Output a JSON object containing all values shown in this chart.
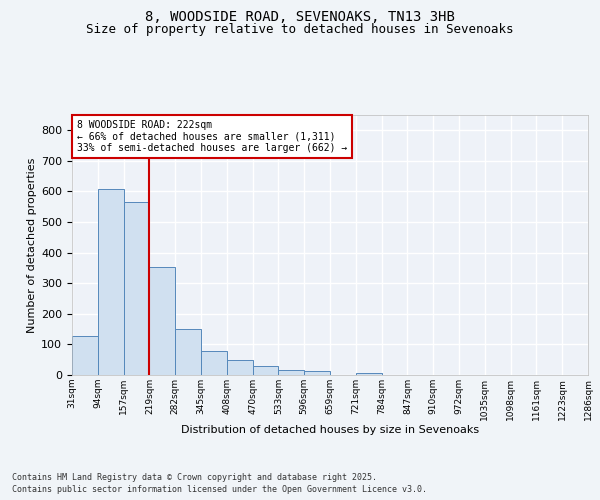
{
  "title_line1": "8, WOODSIDE ROAD, SEVENOAKS, TN13 3HB",
  "title_line2": "Size of property relative to detached houses in Sevenoaks",
  "bar_values": [
    128,
    607,
    565,
    352,
    150,
    78,
    50,
    30,
    15,
    14,
    0,
    5,
    0,
    0,
    0,
    0,
    0,
    0,
    0,
    0
  ],
  "bar_labels": [
    "31sqm",
    "94sqm",
    "157sqm",
    "219sqm",
    "282sqm",
    "345sqm",
    "408sqm",
    "470sqm",
    "533sqm",
    "596sqm",
    "659sqm",
    "721sqm",
    "784sqm",
    "847sqm",
    "910sqm",
    "972sqm",
    "1035sqm",
    "1098sqm",
    "1161sqm",
    "1223sqm",
    "1286sqm"
  ],
  "bar_color": "#d0e0f0",
  "bar_edge_color": "#5588bb",
  "xlabel": "Distribution of detached houses by size in Sevenoaks",
  "ylabel": "Number of detached properties",
  "ylim": [
    0,
    850
  ],
  "yticks": [
    0,
    100,
    200,
    300,
    400,
    500,
    600,
    700,
    800
  ],
  "vline_color": "#cc0000",
  "annotation_title": "8 WOODSIDE ROAD: 222sqm",
  "annotation_line2": "← 66% of detached houses are smaller (1,311)",
  "annotation_line3": "33% of semi-detached houses are larger (662) →",
  "annotation_box_color": "#cc0000",
  "footer_line1": "Contains HM Land Registry data © Crown copyright and database right 2025.",
  "footer_line2": "Contains public sector information licensed under the Open Government Licence v3.0.",
  "bg_color": "#eef2f8",
  "grid_color": "#ffffff",
  "title_fontsize": 10,
  "subtitle_fontsize": 9
}
